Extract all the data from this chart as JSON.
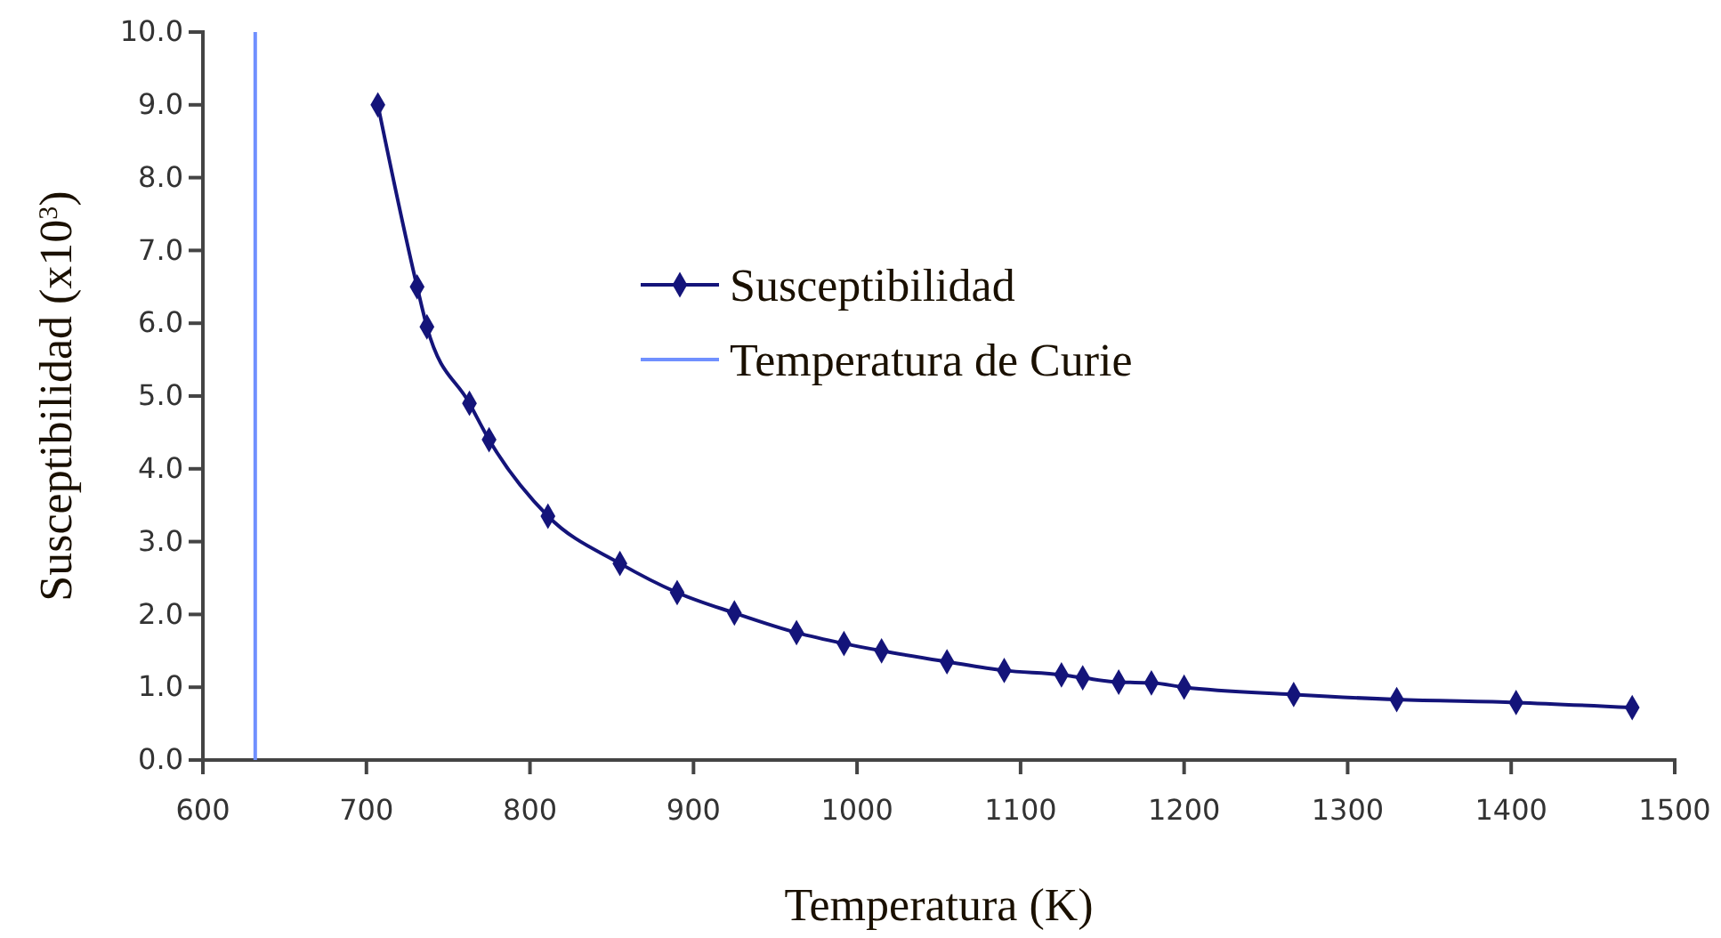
{
  "chart_data": {
    "type": "line",
    "xlabel": "Temperatura (K)",
    "ylabel": "Susceptibilidad (x10$^{3}$)",
    "xlim": [
      600,
      1500
    ],
    "xticks": [
      600,
      700,
      800,
      900,
      1000,
      1100,
      1200,
      1300,
      1400,
      1500
    ],
    "ylim": [
      0,
      10
    ],
    "yticks": [
      {
        "value": 0,
        "label": "0.0"
      },
      {
        "value": 1,
        "label": "1.0"
      },
      {
        "value": 2,
        "label": "2.0"
      },
      {
        "value": 3,
        "label": "3.0"
      },
      {
        "value": 4,
        "label": "4.0"
      },
      {
        "value": 5,
        "label": "5.0"
      },
      {
        "value": 6,
        "label": "6.0"
      },
      {
        "value": 7,
        "label": "7.0"
      },
      {
        "value": 8,
        "label": "8.0"
      },
      {
        "value": 9,
        "label": "9.0"
      },
      {
        "value": 10,
        "label": "10.0"
      }
    ],
    "grid": false,
    "legend": "top",
    "series": [
      {
        "name": "Susceptibilidad",
        "color": "#14147a",
        "marker": "diamond",
        "x": [
          707,
          731,
          737,
          763,
          775,
          811,
          855,
          890,
          925,
          963,
          992,
          1015,
          1055,
          1090,
          1125,
          1138,
          1160,
          1180,
          1200,
          1267,
          1330,
          1403,
          1474
        ],
        "values": [
          9.0,
          6.5,
          5.95,
          4.9,
          4.4,
          3.35,
          2.7,
          2.3,
          2.02,
          1.75,
          1.6,
          1.5,
          1.35,
          1.23,
          1.17,
          1.13,
          1.07,
          1.06,
          1.0,
          0.9,
          0.83,
          0.79,
          0.72
        ]
      },
      {
        "name": "Temperatura de Curie",
        "color": "#7090ff",
        "marker": "none",
        "x": [
          632,
          632
        ],
        "values": [
          0,
          10
        ]
      }
    ]
  }
}
